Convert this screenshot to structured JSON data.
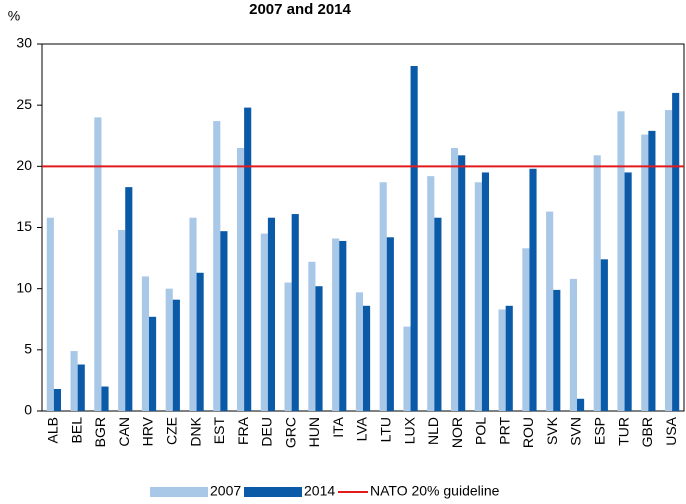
{
  "chart_data": {
    "type": "bar",
    "title": "2007 and 2014",
    "y_label": "%",
    "categories": [
      "ALB",
      "BEL",
      "BGR",
      "CAN",
      "HRV",
      "CZE",
      "DNK",
      "EST",
      "FRA",
      "DEU",
      "GRC",
      "HUN",
      "ITA",
      "LVA",
      "LTU",
      "LUX",
      "NLD",
      "NOR",
      "POL",
      "PRT",
      "ROU",
      "SVK",
      "SVN",
      "ESP",
      "TUR",
      "GBR",
      "USA"
    ],
    "series": [
      {
        "name": "2007",
        "color": "#a9c8e8",
        "values": [
          15.8,
          4.9,
          24.0,
          14.8,
          11.0,
          10.0,
          15.8,
          23.7,
          21.5,
          14.5,
          10.5,
          12.2,
          14.1,
          9.7,
          18.7,
          6.9,
          19.2,
          21.5,
          18.7,
          8.3,
          13.3,
          16.3,
          10.8,
          20.9,
          24.5,
          22.6,
          24.6
        ]
      },
      {
        "name": "2014",
        "color": "#0b5aa8",
        "values": [
          1.8,
          3.8,
          2.0,
          18.3,
          7.7,
          9.1,
          11.3,
          14.7,
          24.8,
          15.8,
          16.1,
          10.2,
          13.9,
          8.6,
          14.2,
          28.2,
          15.8,
          20.9,
          19.5,
          8.6,
          19.8,
          9.9,
          1.0,
          12.4,
          19.5,
          22.9,
          26.0
        ]
      }
    ],
    "reference_line": {
      "value": 20,
      "label": "NATO 20% guideline",
      "color": "#e31a1c"
    },
    "ylim": [
      0,
      30
    ],
    "yticks": [
      0,
      5,
      10,
      15,
      20,
      25,
      30
    ],
    "grid": false
  }
}
